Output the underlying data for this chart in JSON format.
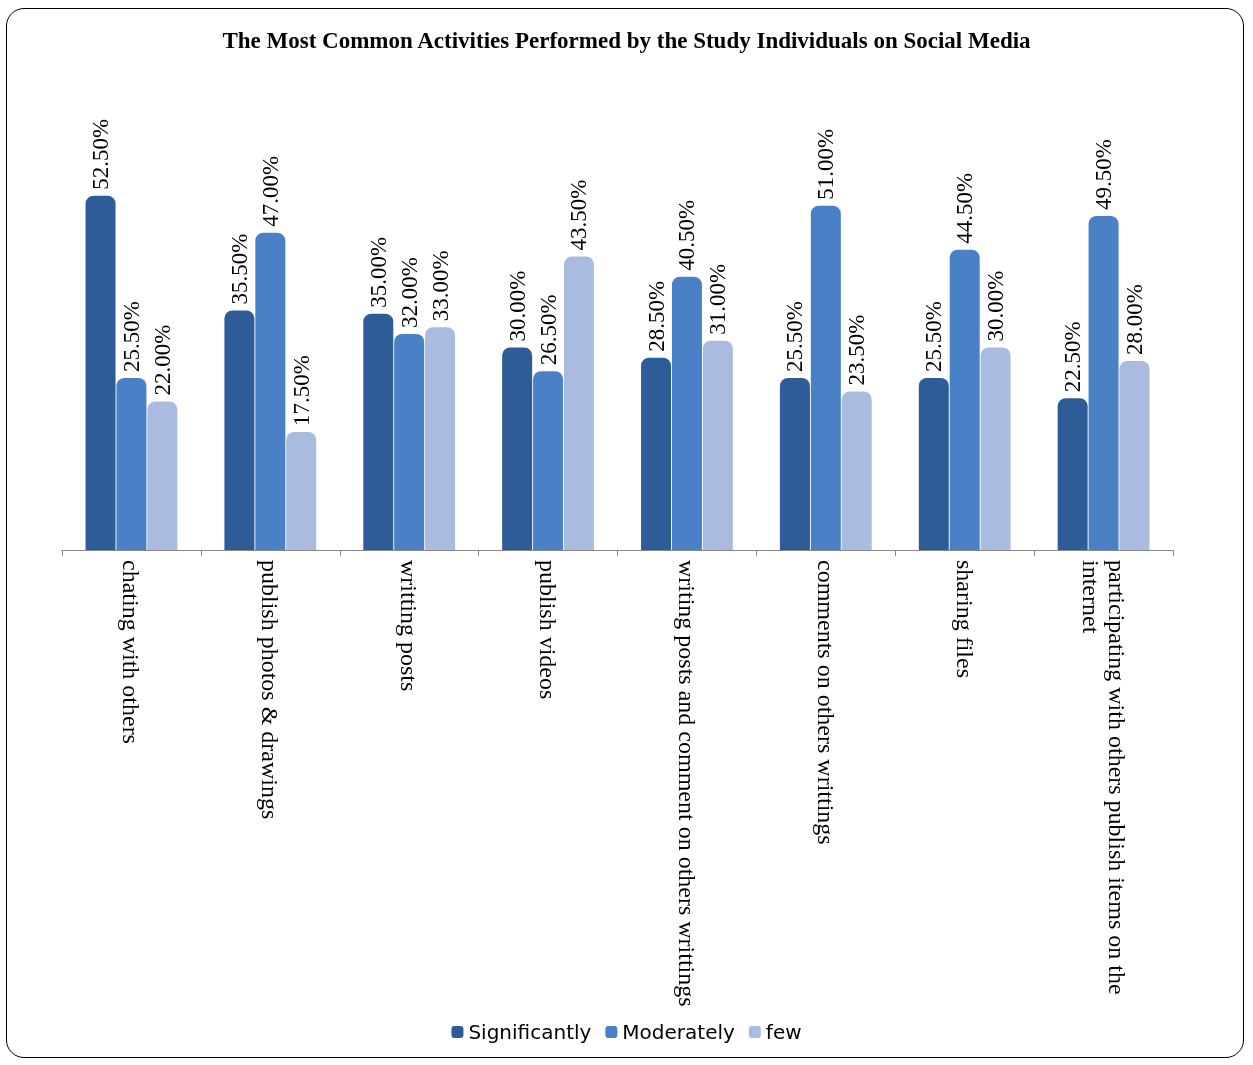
{
  "chart_data": {
    "type": "bar",
    "title": "The Most Common Activities Performed by the Study Individuals on Social Media",
    "categories": [
      "chating with others",
      "publish photos & drawings",
      "writting posts",
      "publish videos",
      "writing posts and comment on others writtings",
      "comments on others writtings",
      "sharing files",
      "participating with others publish items on the internet"
    ],
    "series": [
      {
        "name": "Significantly",
        "color": "#2e5c96",
        "values": [
          52.5,
          35.5,
          35,
          30,
          28.5,
          25.5,
          25.5,
          22.5
        ],
        "value_labels": [
          "52.50%",
          "35.50%",
          "35.00%",
          "30.00%",
          "28.50%",
          "25.50%",
          "25.50%",
          "22.50%"
        ]
      },
      {
        "name": "Moderately",
        "color": "#4a80c6",
        "values": [
          25.5,
          47,
          32,
          26.5,
          40.5,
          51,
          44.5,
          49.5
        ],
        "value_labels": [
          "25.50%",
          "47.00%",
          "32.00%",
          "26.50%",
          "40.50%",
          "51.00%",
          "44.50%",
          "49.50%"
        ]
      },
      {
        "name": "few",
        "color": "#a9bbdf",
        "values": [
          22,
          17.5,
          33,
          43.5,
          31,
          23.5,
          30,
          28
        ],
        "value_labels": [
          "22.00%",
          "17.50%",
          "33.00%",
          "43.50%",
          "31.00%",
          "23.50%",
          "30.00%",
          "28.00%"
        ]
      }
    ],
    "tick_labels": "x",
    "legend": "bottom"
  }
}
